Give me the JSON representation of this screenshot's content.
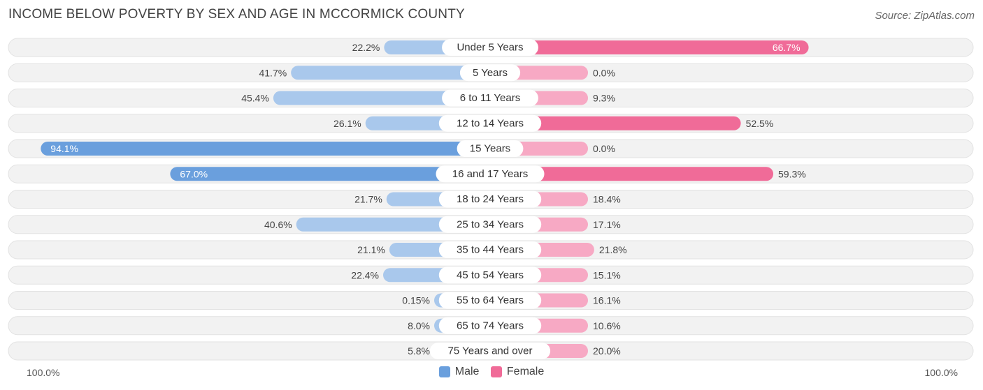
{
  "header": {
    "title": "INCOME BELOW POVERTY BY SEX AND AGE IN MCCORMICK COUNTY",
    "source": "Source: ZipAtlas.com"
  },
  "axis": {
    "left_label": "100.0%",
    "right_label": "100.0%"
  },
  "legend": {
    "male": "Male",
    "female": "Female"
  },
  "colors": {
    "male": "#6a9fdd",
    "male_light": "#a9c8ec",
    "female": "#f06b98",
    "female_light": "#f7a9c4",
    "row_bg": "#f2f2f2"
  },
  "chart_data": {
    "type": "bar",
    "title": "INCOME BELOW POVERTY BY SEX AND AGE IN MCCORMICK COUNTY",
    "orientation": "horizontal-diverging",
    "xlim": [
      -100,
      100
    ],
    "categories": [
      "Under 5 Years",
      "5 Years",
      "6 to 11 Years",
      "12 to 14 Years",
      "15 Years",
      "16 and 17 Years",
      "18 to 24 Years",
      "25 to 34 Years",
      "35 to 44 Years",
      "45 to 54 Years",
      "55 to 64 Years",
      "65 to 74 Years",
      "75 Years and over"
    ],
    "series": [
      {
        "name": "Male",
        "values": [
          22.2,
          41.7,
          45.4,
          26.1,
          94.1,
          67.0,
          21.7,
          40.6,
          21.1,
          22.4,
          0.15,
          8.0,
          5.8
        ],
        "labels": [
          "22.2%",
          "41.7%",
          "45.4%",
          "26.1%",
          "94.1%",
          "67.0%",
          "21.7%",
          "40.6%",
          "21.1%",
          "22.4%",
          "0.15%",
          "8.0%",
          "5.8%"
        ]
      },
      {
        "name": "Female",
        "values": [
          66.7,
          0.0,
          9.3,
          52.5,
          0.0,
          59.3,
          18.4,
          17.1,
          21.8,
          15.1,
          16.1,
          10.6,
          20.0
        ],
        "labels": [
          "66.7%",
          "0.0%",
          "9.3%",
          "52.5%",
          "0.0%",
          "59.3%",
          "18.4%",
          "17.1%",
          "21.8%",
          "15.1%",
          "16.1%",
          "10.6%",
          "20.0%"
        ]
      }
    ],
    "legend_position": "bottom-center"
  }
}
